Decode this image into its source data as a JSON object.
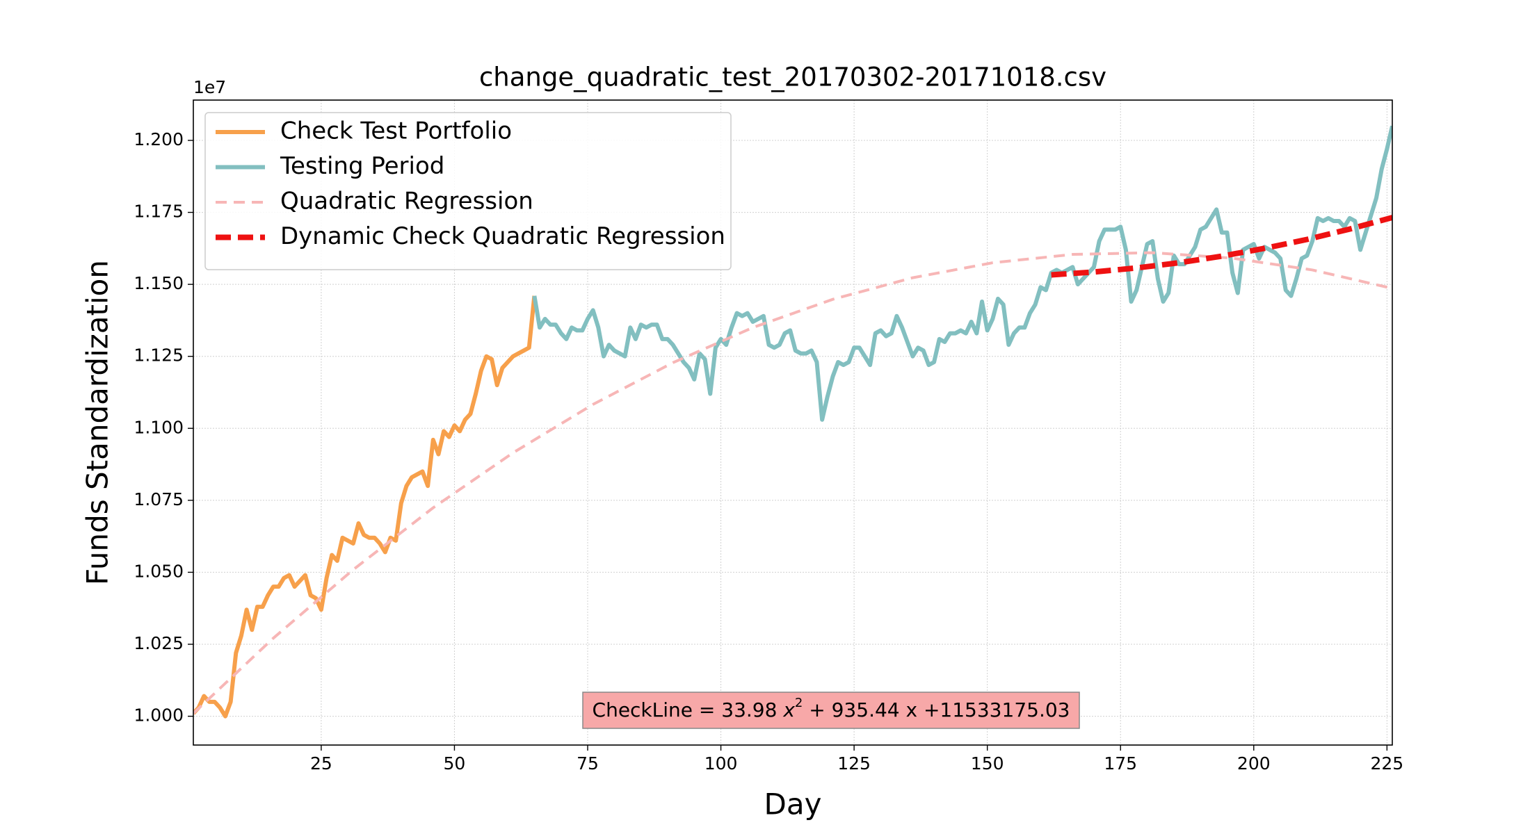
{
  "chart_data": {
    "type": "line",
    "title": "change_quadratic_test_20170302-20171018.csv",
    "x_label": "Day",
    "y_label": "Funds Standardization",
    "y_offset_label": "1e7",
    "annotation": [
      "CheckLine = 33.98 ",
      "x",
      "2",
      " + 935.44 x +11533175.03"
    ],
    "xlim": [
      1,
      226
    ],
    "ylim": [
      0.99,
      1.214
    ],
    "xticks": [
      25,
      50,
      75,
      100,
      125,
      150,
      175,
      200,
      225
    ],
    "yticks": [
      {
        "value": 1,
        "label": "1.000"
      },
      {
        "value": 1.025,
        "label": "1.025"
      },
      {
        "value": 1.05,
        "label": "1.050"
      },
      {
        "value": 1.075,
        "label": "1.075"
      },
      {
        "value": 1.1,
        "label": "1.100"
      },
      {
        "value": 1.125,
        "label": "1.125"
      },
      {
        "value": 1.15,
        "label": "1.150"
      },
      {
        "value": 1.175,
        "label": "1.175"
      },
      {
        "value": 1.2,
        "label": "1.200"
      }
    ],
    "grid": true,
    "legend": "upper left",
    "series": [
      {
        "name": "Check Test Portfolio",
        "color": "#f7a04b",
        "linestyle": "solid",
        "x": [
          1,
          2,
          3,
          4,
          5,
          6,
          7,
          8,
          9,
          10,
          11,
          12,
          13,
          14,
          15,
          16,
          17,
          18,
          19,
          20,
          21,
          22,
          23,
          24,
          25,
          26,
          27,
          28,
          29,
          30,
          31,
          32,
          33,
          34,
          35,
          36,
          37,
          38,
          39,
          40,
          41,
          42,
          43,
          44,
          45,
          46,
          47,
          48,
          49,
          50,
          51,
          52,
          53,
          54,
          55,
          56,
          57,
          58,
          59,
          60,
          61,
          62,
          63,
          64,
          65
        ],
        "values": [
          1.001,
          1.003,
          1.007,
          1.005,
          1.005,
          1.003,
          1.0,
          1.005,
          1.022,
          1.028,
          1.037,
          1.03,
          1.038,
          1.038,
          1.042,
          1.045,
          1.045,
          1.048,
          1.049,
          1.045,
          1.047,
          1.049,
          1.042,
          1.041,
          1.037,
          1.048,
          1.056,
          1.054,
          1.062,
          1.061,
          1.06,
          1.067,
          1.063,
          1.062,
          1.062,
          1.06,
          1.057,
          1.062,
          1.061,
          1.074,
          1.08,
          1.083,
          1.084,
          1.085,
          1.08,
          1.096,
          1.091,
          1.099,
          1.097,
          1.101,
          1.099,
          1.103,
          1.105,
          1.112,
          1.12,
          1.125,
          1.124,
          1.115,
          1.121,
          1.123,
          1.125,
          1.126,
          1.127,
          1.128,
          1.146
        ]
      },
      {
        "name": "Testing Period",
        "color": "#82bfc0",
        "linestyle": "solid",
        "x": [
          65,
          66,
          67,
          68,
          69,
          70,
          71,
          72,
          73,
          74,
          75,
          76,
          77,
          78,
          79,
          80,
          81,
          82,
          83,
          84,
          85,
          86,
          87,
          88,
          89,
          90,
          91,
          92,
          93,
          94,
          95,
          96,
          97,
          98,
          99,
          100,
          101,
          102,
          103,
          104,
          105,
          106,
          107,
          108,
          109,
          110,
          111,
          112,
          113,
          114,
          115,
          116,
          117,
          118,
          119,
          120,
          121,
          122,
          123,
          124,
          125,
          126,
          127,
          128,
          129,
          130,
          131,
          132,
          133,
          134,
          135,
          136,
          137,
          138,
          139,
          140,
          141,
          142,
          143,
          144,
          145,
          146,
          147,
          148,
          149,
          150,
          151,
          152,
          153,
          154,
          155,
          156,
          157,
          158,
          159,
          160,
          161,
          162,
          163,
          164,
          165,
          166,
          167,
          168,
          169,
          170,
          171,
          172,
          173,
          174,
          175,
          176,
          177,
          178,
          179,
          180,
          181,
          182,
          183,
          184,
          185,
          186,
          187,
          188,
          189,
          190,
          191,
          192,
          193,
          194,
          195,
          196,
          197,
          198,
          199,
          200,
          201,
          202,
          203,
          204,
          205,
          206,
          207,
          208,
          209,
          210,
          211,
          212,
          213,
          214,
          215,
          216,
          217,
          218,
          219,
          220,
          221,
          222,
          223,
          224,
          225,
          226
        ],
        "values": [
          1.146,
          1.135,
          1.138,
          1.136,
          1.136,
          1.133,
          1.131,
          1.135,
          1.134,
          1.134,
          1.138,
          1.141,
          1.135,
          1.125,
          1.129,
          1.127,
          1.126,
          1.125,
          1.135,
          1.131,
          1.136,
          1.135,
          1.136,
          1.136,
          1.131,
          1.131,
          1.129,
          1.126,
          1.123,
          1.121,
          1.117,
          1.126,
          1.124,
          1.112,
          1.128,
          1.131,
          1.129,
          1.135,
          1.14,
          1.139,
          1.14,
          1.137,
          1.138,
          1.139,
          1.129,
          1.128,
          1.129,
          1.133,
          1.134,
          1.127,
          1.126,
          1.126,
          1.127,
          1.123,
          1.103,
          1.111,
          1.118,
          1.123,
          1.122,
          1.123,
          1.128,
          1.128,
          1.125,
          1.122,
          1.133,
          1.134,
          1.132,
          1.133,
          1.139,
          1.135,
          1.13,
          1.125,
          1.128,
          1.127,
          1.122,
          1.123,
          1.131,
          1.13,
          1.133,
          1.133,
          1.134,
          1.133,
          1.137,
          1.133,
          1.144,
          1.134,
          1.138,
          1.145,
          1.143,
          1.129,
          1.133,
          1.135,
          1.135,
          1.14,
          1.143,
          1.149,
          1.148,
          1.154,
          1.155,
          1.154,
          1.155,
          1.156,
          1.15,
          1.152,
          1.154,
          1.156,
          1.165,
          1.169,
          1.169,
          1.169,
          1.17,
          1.162,
          1.144,
          1.148,
          1.156,
          1.164,
          1.165,
          1.152,
          1.144,
          1.147,
          1.16,
          1.157,
          1.157,
          1.16,
          1.163,
          1.169,
          1.17,
          1.173,
          1.176,
          1.168,
          1.168,
          1.154,
          1.147,
          1.162,
          1.163,
          1.164,
          1.159,
          1.163,
          1.162,
          1.161,
          1.159,
          1.148,
          1.146,
          1.152,
          1.159,
          1.16,
          1.165,
          1.173,
          1.172,
          1.173,
          1.172,
          1.172,
          1.17,
          1.173,
          1.172,
          1.162,
          1.168,
          1.174,
          1.18,
          1.19,
          1.197,
          1.205
        ]
      },
      {
        "name": "Quadratic Regression",
        "color": "#f7b6b6",
        "linestyle": "dashed",
        "x": [
          1,
          16,
          31,
          46,
          61,
          76,
          91,
          106,
          121,
          136,
          151,
          166,
          181,
          196,
          211,
          226
        ],
        "values": [
          1.001,
          1.0271,
          1.0509,
          1.0724,
          1.0915,
          1.1083,
          1.1228,
          1.135,
          1.1448,
          1.1523,
          1.1575,
          1.1604,
          1.161,
          1.1591,
          1.155,
          1.1486
        ]
      },
      {
        "name": "Dynamic Check Quadratic Regression",
        "color": "#ee1111",
        "linestyle": "dashed",
        "x": [
          162,
          170,
          178,
          186,
          194,
          202,
          210,
          218,
          226
        ],
        "values": [
          1.1533,
          1.1543,
          1.1557,
          1.1575,
          1.1598,
          1.1625,
          1.1656,
          1.1692,
          1.1732
        ]
      }
    ]
  }
}
